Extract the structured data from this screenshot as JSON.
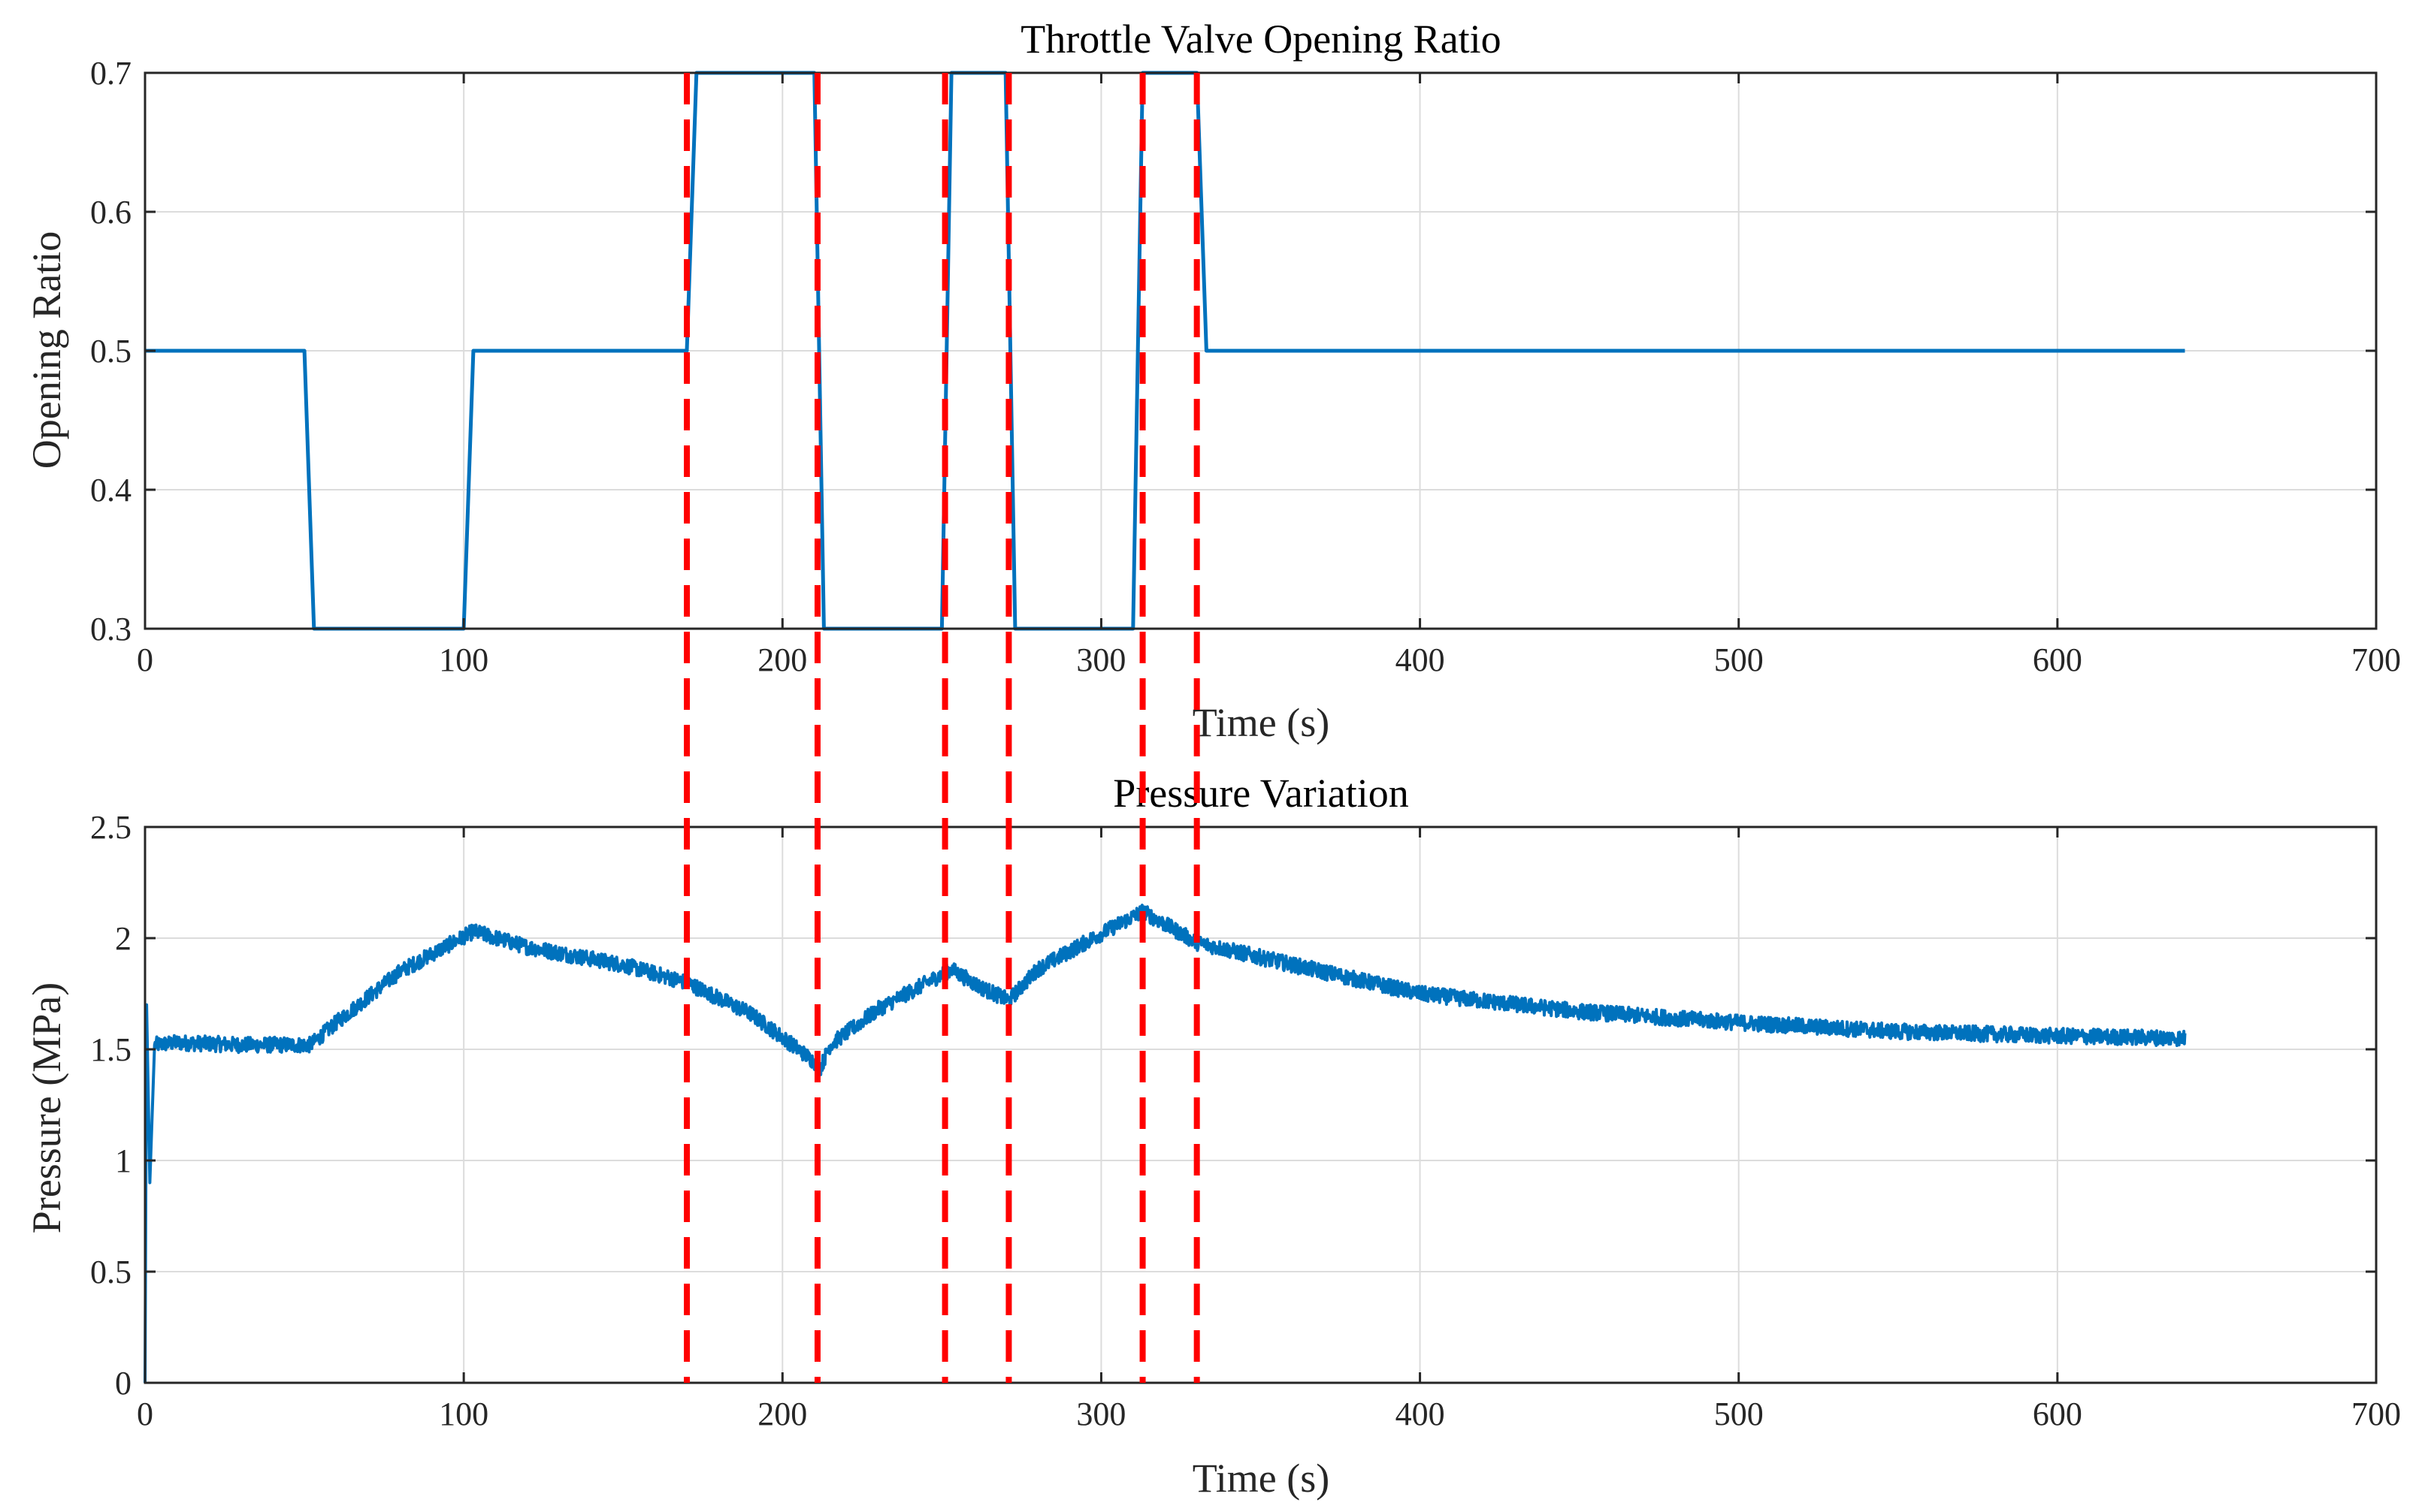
{
  "chart_data": [
    {
      "type": "line",
      "title": "Throttle Valve Opening Ratio",
      "xlabel": "Time (s)",
      "ylabel": "Opening Ratio",
      "xlim": [
        0,
        700
      ],
      "ylim": [
        0.3,
        0.7
      ],
      "xticks": [
        "0",
        "100",
        "200",
        "300",
        "400",
        "500",
        "600",
        "700"
      ],
      "yticks": [
        "0.3",
        "0.4",
        "0.5",
        "0.6",
        "0.7"
      ],
      "grid": true,
      "series": [
        {
          "name": "Opening Ratio",
          "color": "#0072BD",
          "x": [
            0,
            50,
            53,
            100,
            103,
            170,
            173,
            210,
            213,
            250,
            253,
            270,
            273,
            310,
            313,
            330,
            333,
            640
          ],
          "y": [
            0.5,
            0.5,
            0.3,
            0.3,
            0.5,
            0.5,
            0.7,
            0.7,
            0.3,
            0.3,
            0.7,
            0.7,
            0.3,
            0.3,
            0.7,
            0.7,
            0.5,
            0.5
          ]
        }
      ]
    },
    {
      "type": "line",
      "title": "Pressure Variation",
      "xlabel": "Time (s)",
      "ylabel": "Pressure (MPa)",
      "xlim": [
        0,
        700
      ],
      "ylim": [
        0,
        2.5
      ],
      "xticks": [
        "0",
        "100",
        "200",
        "300",
        "400",
        "500",
        "600",
        "700"
      ],
      "yticks": [
        "0",
        "0.5",
        "1",
        "1.5",
        "2",
        "2.5"
      ],
      "grid": true,
      "series": [
        {
          "name": "Pressure",
          "color": "#0072BD",
          "x": [
            0,
            0.5,
            1.5,
            3,
            10,
            30,
            52,
            60,
            80,
            103,
            120,
            150,
            170,
            190,
            205,
            212,
            215,
            230,
            253,
            262,
            271,
            280,
            300,
            313,
            330,
            360,
            400,
            450,
            500,
            550,
            600,
            640
          ],
          "y": [
            0,
            1.7,
            0.9,
            1.52,
            1.53,
            1.52,
            1.52,
            1.62,
            1.85,
            2.03,
            1.96,
            1.88,
            1.8,
            1.66,
            1.5,
            1.42,
            1.52,
            1.68,
            1.86,
            1.78,
            1.72,
            1.86,
            2.02,
            2.12,
            1.98,
            1.88,
            1.75,
            1.67,
            1.62,
            1.58,
            1.56,
            1.55
          ]
        }
      ]
    }
  ],
  "event_lines": {
    "color": "#FF0000",
    "x": [
      170,
      211,
      251,
      271,
      313,
      330
    ]
  }
}
